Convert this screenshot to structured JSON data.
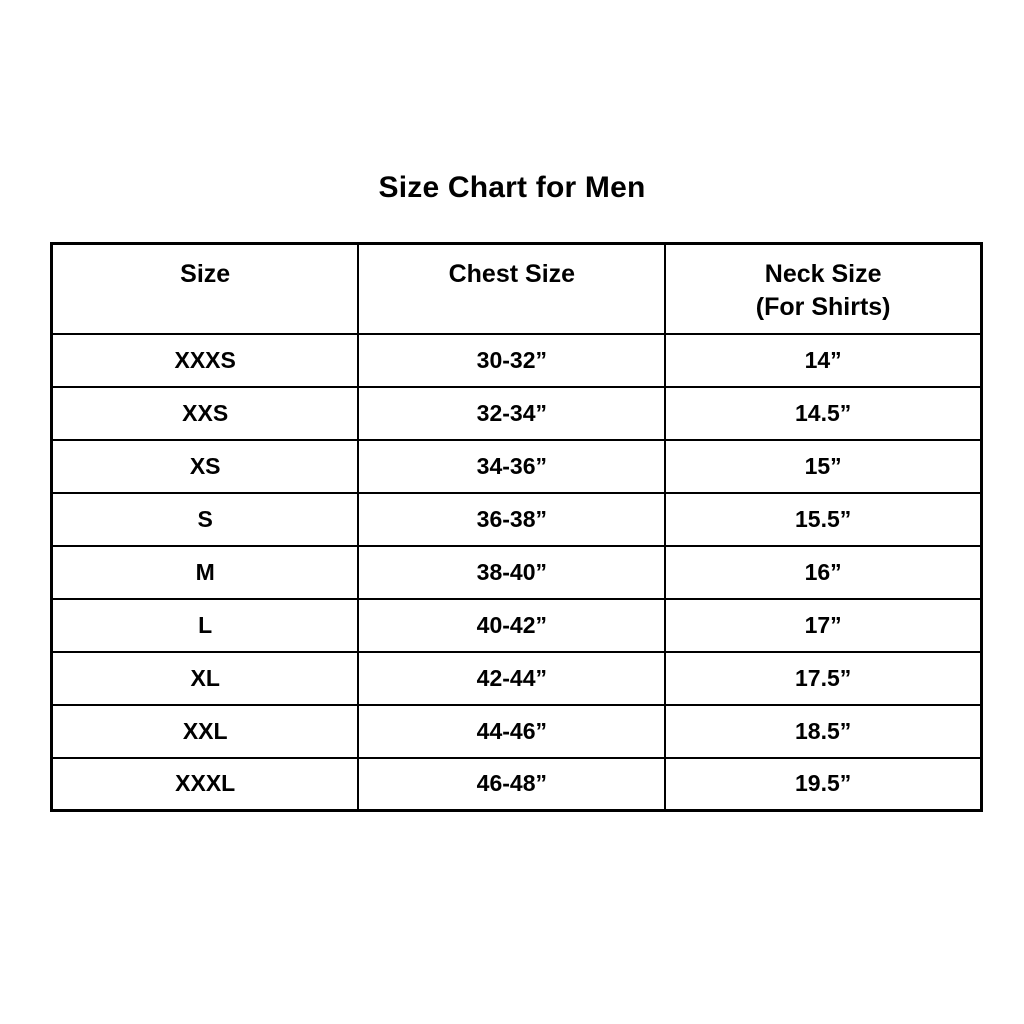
{
  "page": {
    "title": "Size Chart for Men"
  },
  "table": {
    "headers": {
      "size": "Size",
      "chest": "Chest Size",
      "neck_line1": "Neck Size",
      "neck_line2": "(For Shirts)"
    }
  },
  "chart_data": {
    "type": "table",
    "title": "Size Chart for Men",
    "columns": [
      "Size",
      "Chest Size",
      "Neck Size (For Shirts)"
    ],
    "rows": [
      [
        "XXXS",
        "30-32”",
        "14”"
      ],
      [
        "XXS",
        "32-34”",
        "14.5”"
      ],
      [
        "XS",
        "34-36”",
        "15”"
      ],
      [
        "S",
        "36-38”",
        "15.5”"
      ],
      [
        "M",
        "38-40”",
        "16”"
      ],
      [
        "L",
        "40-42”",
        "17”"
      ],
      [
        "XL",
        "42-44”",
        "17.5”"
      ],
      [
        "XXL",
        "44-46”",
        "18.5”"
      ],
      [
        "XXXL",
        "46-48”",
        "19.5”"
      ]
    ]
  }
}
